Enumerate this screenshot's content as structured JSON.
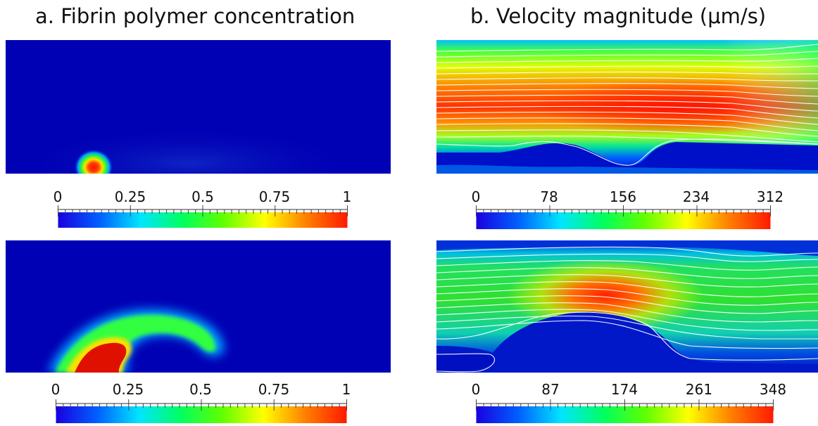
{
  "titles": {
    "a": "a. Fibrin polymer concentration",
    "b": "b. Velocity magnitude (μm/s)"
  },
  "colorbars": [
    {
      "id": "a-top",
      "labels": [
        "0",
        "0.25",
        "0.5",
        "0.75",
        "1"
      ],
      "min": 0,
      "max": 1
    },
    {
      "id": "b-top",
      "labels": [
        "0",
        "78",
        "156",
        "234",
        "312"
      ],
      "min": 0,
      "max": 312
    },
    {
      "id": "a-bottom",
      "labels": [
        "0",
        "0.25",
        "0.5",
        "0.75",
        "1"
      ],
      "min": 0,
      "max": 1
    },
    {
      "id": "b-bottom",
      "labels": [
        "0",
        "87",
        "174",
        "261",
        "348"
      ],
      "min": 0,
      "max": 348
    }
  ],
  "colors": {
    "field_background": "#0000b4",
    "streamline": "#ffffff",
    "colormap": [
      "#1a00e0",
      "#0060ff",
      "#00e5ff",
      "#00ff60",
      "#60ff00",
      "#ffff00",
      "#ff8000",
      "#ff1a00"
    ]
  }
}
